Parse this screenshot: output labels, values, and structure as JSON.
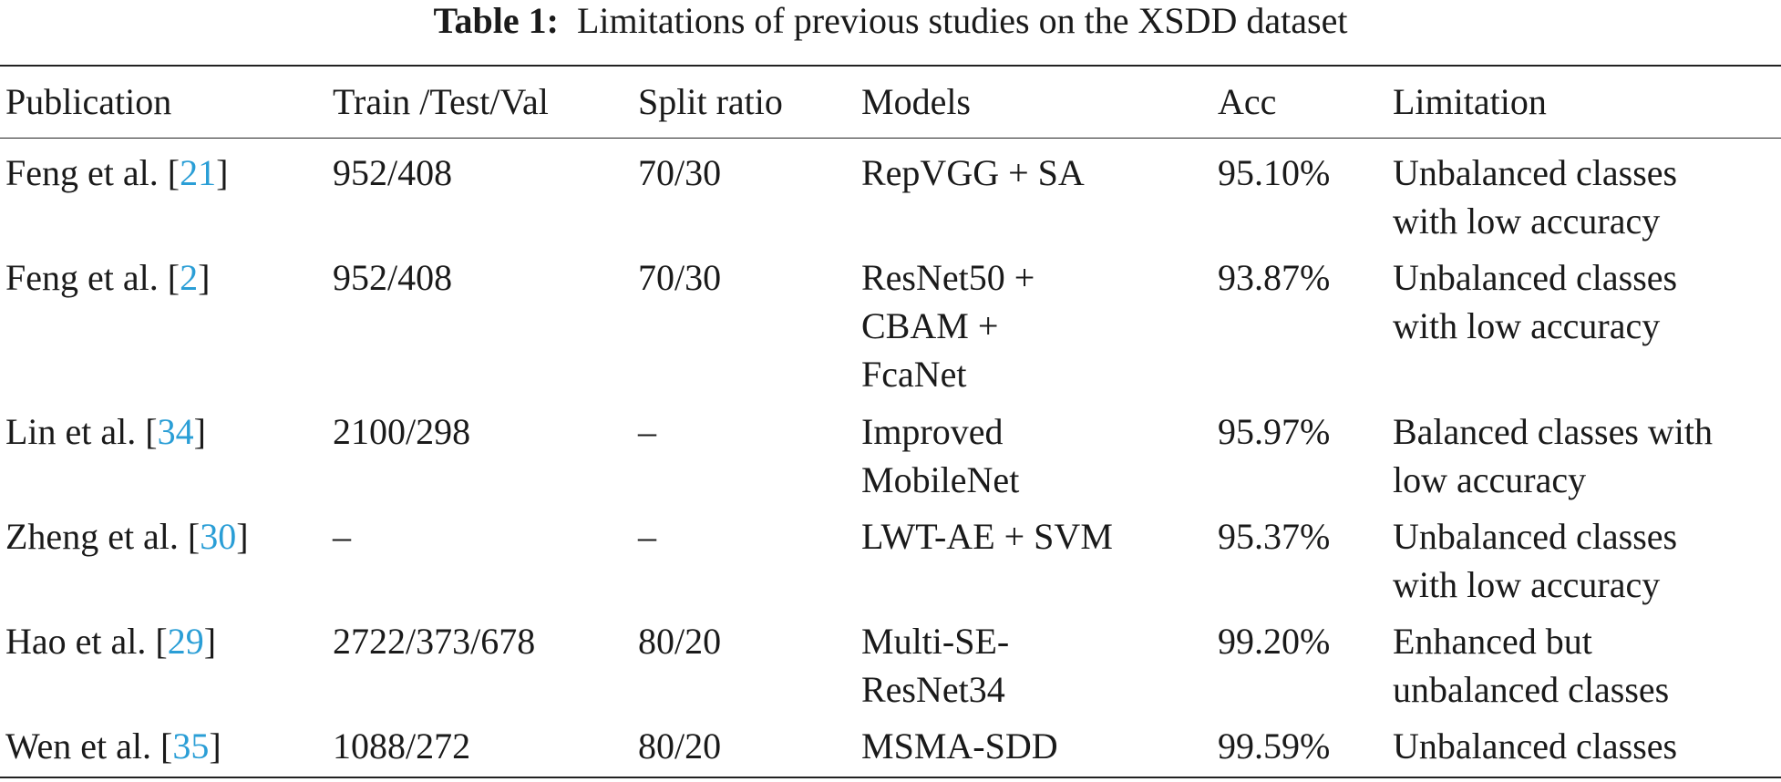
{
  "caption": {
    "label": "Table 1:",
    "text": "Limitations of previous studies on the XSDD dataset"
  },
  "table": {
    "headers": [
      "Publication",
      "Train /Test/Val",
      "Split ratio",
      "Models",
      "Acc",
      "Limitation"
    ],
    "rows": [
      {
        "pub_author": "Feng et al.",
        "pub_ref": "21",
        "split": "952/408",
        "ratio": "70/30",
        "models": [
          "RepVGG + SA"
        ],
        "acc": "95.10%",
        "limitation": [
          "Unbalanced classes",
          "with low accuracy"
        ]
      },
      {
        "pub_author": "Feng et al.",
        "pub_ref": "2",
        "split": "952/408",
        "ratio": "70/30",
        "models": [
          "ResNet50 +",
          "CBAM +",
          "FcaNet"
        ],
        "acc": "93.87%",
        "limitation": [
          "Unbalanced classes",
          "with low accuracy"
        ]
      },
      {
        "pub_author": "Lin et al.",
        "pub_ref": "34",
        "split": "2100/298",
        "ratio": "–",
        "models": [
          "Improved",
          "MobileNet"
        ],
        "acc": "95.97%",
        "limitation": [
          "Balanced classes with",
          "low accuracy"
        ]
      },
      {
        "pub_author": "Zheng et al.",
        "pub_ref": "30",
        "split": "–",
        "ratio": "–",
        "models": [
          "LWT-AE + SVM"
        ],
        "acc": "95.37%",
        "limitation": [
          "Unbalanced classes",
          "with low accuracy"
        ]
      },
      {
        "pub_author": "Hao et al.",
        "pub_ref": "29",
        "split": "2722/373/678",
        "ratio": "80/20",
        "models": [
          "Multi-SE-",
          "ResNet34"
        ],
        "acc": "99.20%",
        "limitation": [
          "Enhanced but",
          "unbalanced classes"
        ]
      },
      {
        "pub_author": "Wen et al.",
        "pub_ref": "35",
        "split": "1088/272",
        "ratio": "80/20",
        "models": [
          "MSMA-SDD"
        ],
        "acc": "99.59%",
        "limitation": [
          "Unbalanced classes"
        ]
      }
    ]
  },
  "colors": {
    "text": "#1a1a1a",
    "reference_link": "#2a9ed6",
    "rule": "#222222"
  }
}
